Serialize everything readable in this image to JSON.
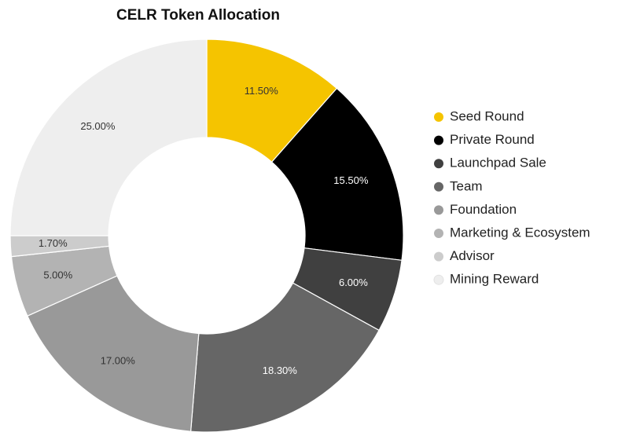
{
  "chart_data": {
    "type": "donut",
    "title": "CELR Token Allocation",
    "categories": [
      "Seed Round",
      "Private Round",
      "Launchpad Sale",
      "Team",
      "Foundation",
      "Marketing & Ecosystem",
      "Advisor",
      "Mining Reward"
    ],
    "values": [
      11.5,
      15.5,
      6.0,
      18.3,
      17.0,
      5.0,
      1.7,
      25.0
    ],
    "value_labels": [
      "11.50%",
      "15.50%",
      "6.00%",
      "18.30%",
      "17.00%",
      "5.00%",
      "1.70%",
      "25.00%"
    ],
    "colors": [
      "#f5c400",
      "#000000",
      "#404040",
      "#666666",
      "#999999",
      "#b3b3b3",
      "#cccccc",
      "#eeeeee"
    ],
    "legend": "right"
  }
}
